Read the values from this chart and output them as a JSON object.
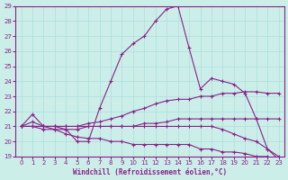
{
  "xlabel": "Windchill (Refroidissement éolien,°C)",
  "xlim": [
    -0.5,
    23.5
  ],
  "ylim": [
    19,
    29
  ],
  "xticks": [
    0,
    1,
    2,
    3,
    4,
    5,
    6,
    7,
    8,
    9,
    10,
    11,
    12,
    13,
    14,
    15,
    16,
    17,
    18,
    19,
    20,
    21,
    22,
    23
  ],
  "yticks": [
    19,
    20,
    21,
    22,
    23,
    24,
    25,
    26,
    27,
    28,
    29
  ],
  "bg_color": "#cceee8",
  "line_color": "#882288",
  "grid_color": "#aadddd",
  "lines": [
    {
      "x": [
        0,
        1,
        2,
        3,
        4,
        5,
        6,
        7,
        8,
        9,
        10,
        11,
        12,
        13,
        14,
        15,
        16,
        17,
        18,
        19,
        20,
        21,
        22,
        23
      ],
      "y": [
        21.0,
        21.8,
        21.0,
        21.0,
        20.8,
        20.0,
        20.0,
        22.2,
        24.0,
        25.8,
        26.5,
        27.0,
        28.0,
        28.8,
        29.0,
        26.2,
        23.5,
        24.2,
        24.0,
        23.8,
        23.2,
        21.5,
        19.5,
        18.8
      ]
    },
    {
      "x": [
        0,
        1,
        2,
        3,
        4,
        5,
        6,
        7,
        8,
        9,
        10,
        11,
        12,
        13,
        14,
        15,
        16,
        17,
        18,
        19,
        20,
        21,
        22,
        23
      ],
      "y": [
        21.0,
        21.3,
        21.0,
        21.0,
        21.0,
        21.0,
        21.2,
        21.3,
        21.5,
        21.7,
        22.0,
        22.2,
        22.5,
        22.7,
        22.8,
        22.8,
        23.0,
        23.0,
        23.2,
        23.2,
        23.3,
        23.3,
        23.2,
        23.2
      ]
    },
    {
      "x": [
        0,
        1,
        2,
        3,
        4,
        5,
        6,
        7,
        8,
        9,
        10,
        11,
        12,
        13,
        14,
        15,
        16,
        17,
        18,
        19,
        20,
        21,
        22,
        23
      ],
      "y": [
        21.0,
        21.0,
        21.0,
        20.8,
        20.8,
        20.8,
        21.0,
        21.0,
        21.0,
        21.0,
        21.0,
        21.2,
        21.2,
        21.3,
        21.5,
        21.5,
        21.5,
        21.5,
        21.5,
        21.5,
        21.5,
        21.5,
        21.5,
        21.5
      ]
    },
    {
      "x": [
        0,
        1,
        2,
        3,
        4,
        5,
        6,
        7,
        8,
        9,
        10,
        11,
        12,
        13,
        14,
        15,
        16,
        17,
        18,
        19,
        20,
        21,
        22,
        23
      ],
      "y": [
        21.0,
        21.0,
        21.0,
        21.0,
        21.0,
        21.0,
        21.0,
        21.0,
        21.0,
        21.0,
        21.0,
        21.0,
        21.0,
        21.0,
        21.0,
        21.0,
        21.0,
        21.0,
        20.8,
        20.5,
        20.2,
        20.0,
        19.5,
        19.0
      ]
    },
    {
      "x": [
        0,
        1,
        2,
        3,
        4,
        5,
        6,
        7,
        8,
        9,
        10,
        11,
        12,
        13,
        14,
        15,
        16,
        17,
        18,
        19,
        20,
        21,
        22,
        23
      ],
      "y": [
        21.0,
        21.0,
        20.8,
        20.8,
        20.5,
        20.3,
        20.2,
        20.2,
        20.0,
        20.0,
        19.8,
        19.8,
        19.8,
        19.8,
        19.8,
        19.8,
        19.5,
        19.5,
        19.3,
        19.3,
        19.2,
        19.0,
        19.0,
        18.8
      ]
    }
  ]
}
